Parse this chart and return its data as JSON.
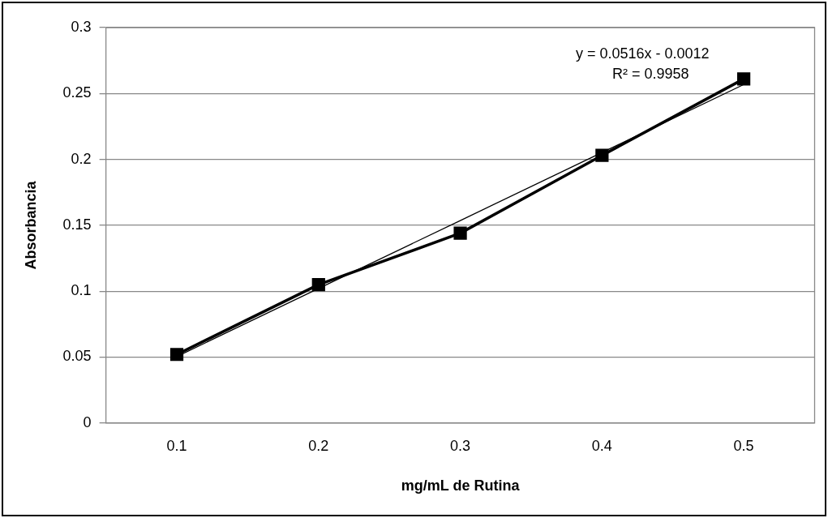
{
  "chart_data": {
    "type": "line",
    "xlabel": "mg/mL de Rutina",
    "ylabel": "Absorbancia",
    "categories": [
      "0.1",
      "0.2",
      "0.3",
      "0.4",
      "0.5"
    ],
    "series": [
      {
        "color": "#000000",
        "values": [
          0.052,
          0.105,
          0.144,
          0.203,
          0.261
        ],
        "marker": "square"
      },
      {
        "color": "#000000",
        "values": [
          0.0504,
          0.102,
          0.1536,
          0.2052,
          0.2568
        ],
        "marker": "none"
      }
    ],
    "ylim": [
      0,
      0.3
    ],
    "yticks": [
      0,
      0.05,
      0.1,
      0.15,
      0.2,
      0.25,
      0.3
    ],
    "grid": "y",
    "legend": false,
    "annotations": [
      "y = 0.0516x - 0.0012",
      "R² = 0.9958"
    ]
  }
}
